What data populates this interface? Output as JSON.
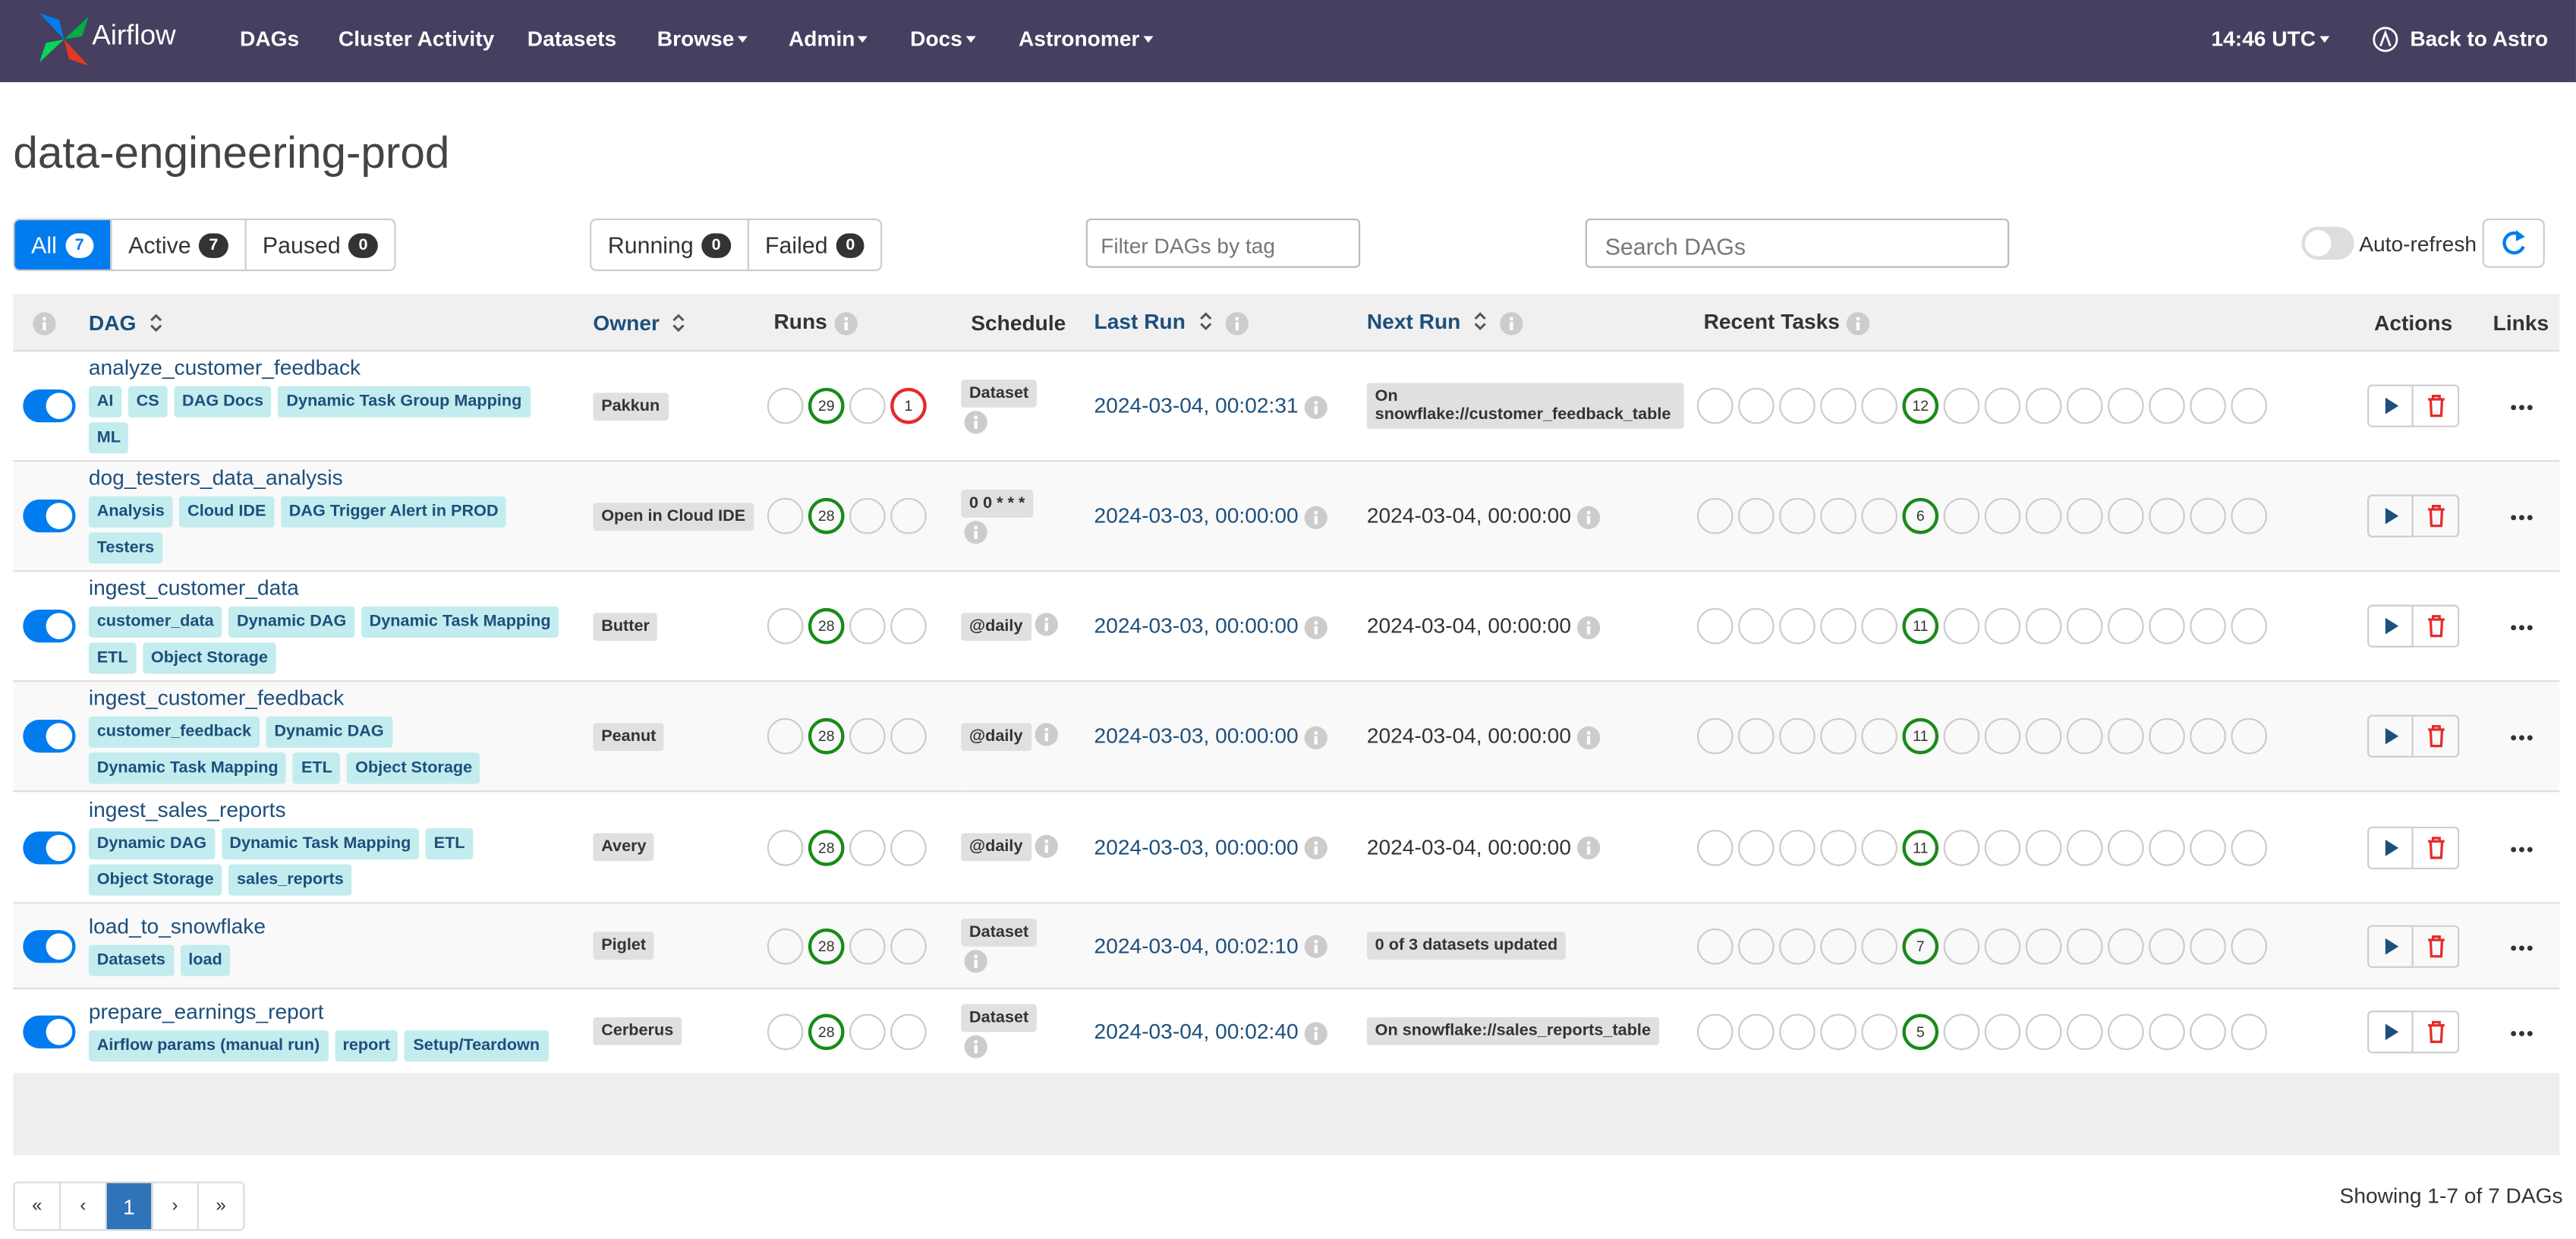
{
  "nav": {
    "brand": "Airflow",
    "items": [
      "DAGs",
      "Cluster Activity",
      "Datasets",
      "Browse",
      "Admin",
      "Docs",
      "Astronomer"
    ],
    "dropdown_items": [
      3,
      4,
      5,
      6
    ],
    "time": "14:46 UTC",
    "back": "Back to Astro"
  },
  "page_title": "data-engineering-prod",
  "status_filters": [
    {
      "label": "All",
      "count": 7
    },
    {
      "label": "Active",
      "count": 7
    },
    {
      "label": "Paused",
      "count": 0
    }
  ],
  "run_filters": [
    {
      "label": "Running",
      "count": 0
    },
    {
      "label": "Failed",
      "count": 0
    }
  ],
  "tag_filter_placeholder": "Filter DAGs by tag",
  "search_placeholder": "Search DAGs",
  "auto_refresh": "Auto-refresh",
  "table": {
    "headers": [
      "DAG",
      "Owner",
      "Runs",
      "Schedule",
      "Last Run",
      "Next Run",
      "Recent Tasks",
      "Actions",
      "Links"
    ],
    "rows": [
      {
        "dag": "analyze_customer_feedback",
        "tags": [
          "AI",
          "CS",
          "DAG Docs",
          "Dynamic Task Group Mapping",
          "ML"
        ],
        "owner": "Pakkun",
        "runs_success": 29,
        "runs_failed": 1,
        "schedule": "Dataset",
        "last_run": "2024-03-04, 00:02:31",
        "next_run": "On snowflake://customer_feedback_table",
        "next_run_badge": true,
        "tasks_success": 12
      },
      {
        "dag": "dog_testers_data_analysis",
        "tags": [
          "Analysis",
          "Cloud IDE",
          "DAG Trigger Alert in PROD",
          "Testers"
        ],
        "owner": "Open in Cloud IDE",
        "runs_success": 28,
        "schedule": "0 0 * * *",
        "last_run": "2024-03-03, 00:00:00",
        "next_run": "2024-03-04, 00:00:00",
        "next_run_badge": false,
        "tasks_success": 6
      },
      {
        "dag": "ingest_customer_data",
        "tags": [
          "customer_data",
          "Dynamic DAG",
          "Dynamic Task Mapping",
          "ETL",
          "Object Storage"
        ],
        "owner": "Butter",
        "runs_success": 28,
        "schedule": "@daily",
        "last_run": "2024-03-03, 00:00:00",
        "next_run": "2024-03-04, 00:00:00",
        "next_run_badge": false,
        "tasks_success": 11
      },
      {
        "dag": "ingest_customer_feedback",
        "tags": [
          "customer_feedback",
          "Dynamic DAG",
          "Dynamic Task Mapping",
          "ETL",
          "Object Storage"
        ],
        "owner": "Peanut",
        "runs_success": 28,
        "schedule": "@daily",
        "last_run": "2024-03-03, 00:00:00",
        "next_run": "2024-03-04, 00:00:00",
        "next_run_badge": false,
        "tasks_success": 11
      },
      {
        "dag": "ingest_sales_reports",
        "tags": [
          "Dynamic DAG",
          "Dynamic Task Mapping",
          "ETL",
          "Object Storage",
          "sales_reports"
        ],
        "owner": "Avery",
        "runs_success": 28,
        "schedule": "@daily",
        "last_run": "2024-03-03, 00:00:00",
        "next_run": "2024-03-04, 00:00:00",
        "next_run_badge": false,
        "tasks_success": 11
      },
      {
        "dag": "load_to_snowflake",
        "tags": [
          "Datasets",
          "load"
        ],
        "owner": "Piglet",
        "runs_success": 28,
        "schedule": "Dataset",
        "last_run": "2024-03-04, 00:02:10",
        "next_run": "0 of 3 datasets updated",
        "next_run_badge": true,
        "tasks_success": 7
      },
      {
        "dag": "prepare_earnings_report",
        "tags": [
          "Airflow params (manual run)",
          "report",
          "Setup/Teardown"
        ],
        "owner": "Cerberus",
        "runs_success": 28,
        "schedule": "Dataset",
        "last_run": "2024-03-04, 00:02:40",
        "next_run": "On snowflake://sales_reports_table",
        "next_run_badge": true,
        "tasks_success": 5
      }
    ]
  },
  "pagination": [
    "«",
    "‹",
    "1",
    "›",
    "»"
  ],
  "pagination_active": 2,
  "showing": "Showing 1-7 of 7 DAGs"
}
